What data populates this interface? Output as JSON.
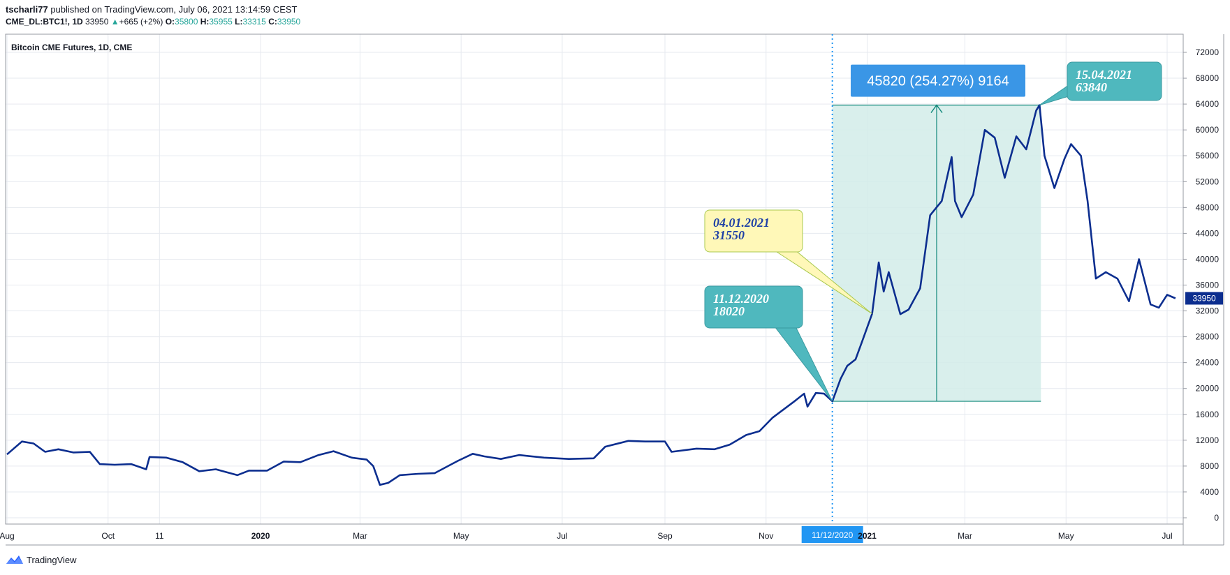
{
  "header": {
    "author": "tscharli77",
    "published_text": "published on TradingView.com, July 06, 2021 13:14:59 CEST",
    "symbol": "CME_DL:BTC1!, 1D",
    "last": "33950",
    "change": "+665 (+2%)",
    "open_label": "O:",
    "open": "35800",
    "high_label": "H:",
    "high": "35955",
    "low_label": "L:",
    "low": "33315",
    "close_label": "C:",
    "close": "33950"
  },
  "footer": {
    "brand": "TradingView"
  },
  "colors": {
    "line": "#0c2e8f",
    "grid": "#e6e9ef",
    "range_fill": "#d2ece9",
    "range_line": "#12897b",
    "callout_teal": "#4fb8be",
    "callout_yellow": "#fff8b8",
    "callout_blue": "#3a96e6",
    "crosshair": "#2196f3",
    "price_label": "#0c2e8f"
  },
  "chart_data": {
    "type": "line",
    "title": "Bitcoin CME Futures, 1D, CME",
    "xlabel": "",
    "ylabel": "",
    "x_ticks": [
      "Aug",
      "Oct",
      "11",
      "2020",
      "Mar",
      "May",
      "Jul",
      "Sep",
      "Nov",
      "11/12/2020",
      "2021",
      "Mar",
      "May",
      "Jul"
    ],
    "y_ticks": [
      0,
      4000,
      8000,
      12000,
      16000,
      20000,
      24000,
      28000,
      32000,
      36000,
      40000,
      44000,
      48000,
      52000,
      56000,
      60000,
      64000,
      68000,
      72000
    ],
    "ylim": [
      -800,
      74000
    ],
    "last_price_label": "33950",
    "series": [
      {
        "values_as_date_price": [
          [
            "2019-08-01",
            9800
          ],
          [
            "2019-08-10",
            11800
          ],
          [
            "2019-08-17",
            11500
          ],
          [
            "2019-08-24",
            10200
          ],
          [
            "2019-09-01",
            10600
          ],
          [
            "2019-09-10",
            10100
          ],
          [
            "2019-09-20",
            10200
          ],
          [
            "2019-09-26",
            8300
          ],
          [
            "2019-10-05",
            8200
          ],
          [
            "2019-10-15",
            8300
          ],
          [
            "2019-10-24",
            7500
          ],
          [
            "2019-10-26",
            9400
          ],
          [
            "2019-11-05",
            9300
          ],
          [
            "2019-11-15",
            8600
          ],
          [
            "2019-11-25",
            7200
          ],
          [
            "2019-12-05",
            7500
          ],
          [
            "2019-12-18",
            6600
          ],
          [
            "2019-12-25",
            7300
          ],
          [
            "2020-01-05",
            7300
          ],
          [
            "2020-01-15",
            8700
          ],
          [
            "2020-01-25",
            8600
          ],
          [
            "2020-02-05",
            9700
          ],
          [
            "2020-02-14",
            10300
          ],
          [
            "2020-02-25",
            9300
          ],
          [
            "2020-03-05",
            9000
          ],
          [
            "2020-03-09",
            8000
          ],
          [
            "2020-03-13",
            5100
          ],
          [
            "2020-03-18",
            5400
          ],
          [
            "2020-03-25",
            6600
          ],
          [
            "2020-04-05",
            6800
          ],
          [
            "2020-04-15",
            6900
          ],
          [
            "2020-04-29",
            8800
          ],
          [
            "2020-05-08",
            9900
          ],
          [
            "2020-05-15",
            9500
          ],
          [
            "2020-05-25",
            9100
          ],
          [
            "2020-06-05",
            9700
          ],
          [
            "2020-06-20",
            9300
          ],
          [
            "2020-07-05",
            9100
          ],
          [
            "2020-07-20",
            9200
          ],
          [
            "2020-07-27",
            11000
          ],
          [
            "2020-08-10",
            11900
          ],
          [
            "2020-08-20",
            11800
          ],
          [
            "2020-09-01",
            11800
          ],
          [
            "2020-09-05",
            10200
          ],
          [
            "2020-09-20",
            10700
          ],
          [
            "2020-10-01",
            10600
          ],
          [
            "2020-10-10",
            11300
          ],
          [
            "2020-10-20",
            12800
          ],
          [
            "2020-10-28",
            13400
          ],
          [
            "2020-11-05",
            15500
          ],
          [
            "2020-11-18",
            18000
          ],
          [
            "2020-11-24",
            19200
          ],
          [
            "2020-11-26",
            17200
          ],
          [
            "2020-12-01",
            19300
          ],
          [
            "2020-12-06",
            19200
          ],
          [
            "2020-12-11",
            18020
          ],
          [
            "2020-12-16",
            21500
          ],
          [
            "2020-12-20",
            23500
          ],
          [
            "2020-12-25",
            24500
          ],
          [
            "2020-12-29",
            27300
          ],
          [
            "2021-01-04",
            31550
          ],
          [
            "2021-01-08",
            39500
          ],
          [
            "2021-01-11",
            35000
          ],
          [
            "2021-01-14",
            38000
          ],
          [
            "2021-01-21",
            31500
          ],
          [
            "2021-01-26",
            32200
          ],
          [
            "2021-02-02",
            35500
          ],
          [
            "2021-02-08",
            46800
          ],
          [
            "2021-02-15",
            49000
          ],
          [
            "2021-02-21",
            55800
          ],
          [
            "2021-02-23",
            49000
          ],
          [
            "2021-02-27",
            46500
          ],
          [
            "2021-03-06",
            50000
          ],
          [
            "2021-03-13",
            60000
          ],
          [
            "2021-03-19",
            58800
          ],
          [
            "2021-03-25",
            52600
          ],
          [
            "2021-04-01",
            59000
          ],
          [
            "2021-04-07",
            57000
          ],
          [
            "2021-04-13",
            63000
          ],
          [
            "2021-04-15",
            63840
          ],
          [
            "2021-04-18",
            56000
          ],
          [
            "2021-04-24",
            51000
          ],
          [
            "2021-04-30",
            55500
          ],
          [
            "2021-05-04",
            57800
          ],
          [
            "2021-05-10",
            56000
          ],
          [
            "2021-05-14",
            49000
          ],
          [
            "2021-05-19",
            37000
          ],
          [
            "2021-05-25",
            38000
          ],
          [
            "2021-06-01",
            37000
          ],
          [
            "2021-06-08",
            33500
          ],
          [
            "2021-06-14",
            40000
          ],
          [
            "2021-06-21",
            33000
          ],
          [
            "2021-06-26",
            32500
          ],
          [
            "2021-07-01",
            34500
          ],
          [
            "2021-07-06",
            33950
          ]
        ]
      }
    ],
    "measure": {
      "start_date": "2020-12-11",
      "end_date": "2021-04-15",
      "low": 18020,
      "high": 63840,
      "label": "45820 (254.27%) 9164"
    },
    "annotations": [
      {
        "date": "2020-12-11",
        "price": 18020,
        "line1": "11.12.2020",
        "line2": "18020",
        "style": "teal"
      },
      {
        "date": "2021-01-04",
        "price": 31550,
        "line1": "04.01.2021",
        "line2": "31550",
        "style": "yellow"
      },
      {
        "date": "2021-04-15",
        "price": 63840,
        "line1": "15.04.2021",
        "line2": "63840",
        "style": "teal"
      }
    ],
    "crosshair_date": "2020-12-11",
    "crosshair_label": "11/12/2020"
  }
}
